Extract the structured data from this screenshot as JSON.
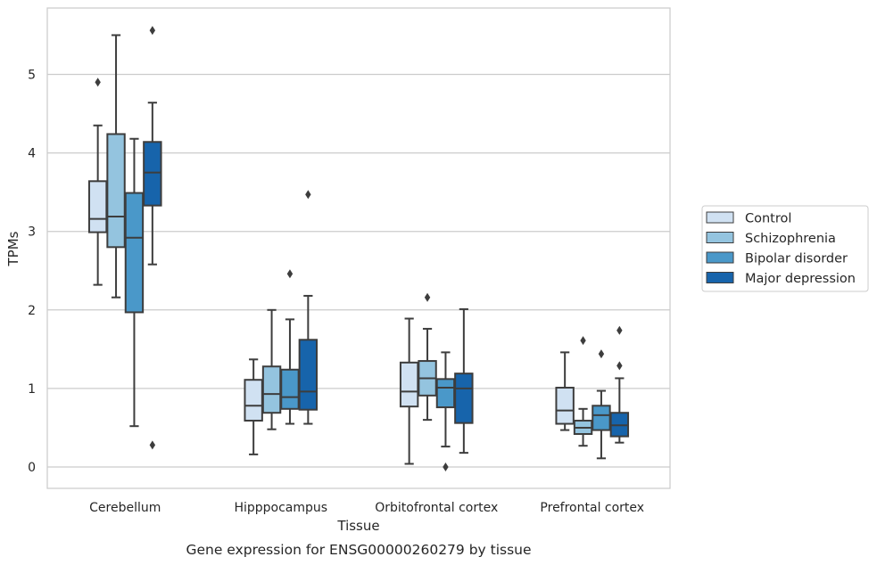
{
  "chart_data": {
    "type": "box",
    "title": "",
    "caption": "Gene expression for ENSG00000260279 by tissue",
    "xlabel": "Tissue",
    "ylabel": "TPMs",
    "ylim": [
      -0.27,
      5.85
    ],
    "yticks": [
      0,
      1,
      2,
      3,
      4,
      5
    ],
    "grid": "horizontal",
    "legend_placement": "right",
    "categories": [
      "Cerebellum",
      "Hipppocampus",
      "Orbitofrontal cortex",
      "Prefrontal cortex"
    ],
    "series": [
      {
        "name": "Control",
        "color": "#d0e1f2",
        "boxes": [
          {
            "whisker_low": 2.32,
            "q1": 2.99,
            "median": 3.16,
            "q3": 3.64,
            "whisker_high": 4.35,
            "outliers": [
              4.9
            ]
          },
          {
            "whisker_low": 0.16,
            "q1": 0.59,
            "median": 0.78,
            "q3": 1.11,
            "whisker_high": 1.37,
            "outliers": []
          },
          {
            "whisker_low": 0.04,
            "q1": 0.77,
            "median": 0.96,
            "q3": 1.33,
            "whisker_high": 1.89,
            "outliers": []
          },
          {
            "whisker_low": 0.47,
            "q1": 0.55,
            "median": 0.72,
            "q3": 1.01,
            "whisker_high": 1.46,
            "outliers": []
          }
        ]
      },
      {
        "name": "Schizophrenia",
        "color": "#94c4df",
        "boxes": [
          {
            "whisker_low": 2.16,
            "q1": 2.8,
            "median": 3.19,
            "q3": 4.24,
            "whisker_high": 5.5,
            "outliers": []
          },
          {
            "whisker_low": 0.48,
            "q1": 0.69,
            "median": 0.93,
            "q3": 1.28,
            "whisker_high": 2.0,
            "outliers": []
          },
          {
            "whisker_low": 0.6,
            "q1": 0.91,
            "median": 1.13,
            "q3": 1.35,
            "whisker_high": 1.76,
            "outliers": [
              2.16
            ]
          },
          {
            "whisker_low": 0.27,
            "q1": 0.42,
            "median": 0.5,
            "q3": 0.59,
            "whisker_high": 0.74,
            "outliers": [
              1.61
            ]
          }
        ]
      },
      {
        "name": "Bipolar disorder",
        "color": "#4a98c9",
        "boxes": [
          {
            "whisker_low": 0.52,
            "q1": 1.97,
            "median": 2.92,
            "q3": 3.49,
            "whisker_high": 4.18,
            "outliers": []
          },
          {
            "whisker_low": 0.55,
            "q1": 0.74,
            "median": 0.89,
            "q3": 1.24,
            "whisker_high": 1.88,
            "outliers": [
              2.46
            ]
          },
          {
            "whisker_low": 0.26,
            "q1": 0.76,
            "median": 1.01,
            "q3": 1.12,
            "whisker_high": 1.46,
            "outliers": [
              0.0
            ]
          },
          {
            "whisker_low": 0.11,
            "q1": 0.47,
            "median": 0.66,
            "q3": 0.78,
            "whisker_high": 0.97,
            "outliers": [
              1.44
            ]
          }
        ]
      },
      {
        "name": "Major depression",
        "color": "#1764ab",
        "boxes": [
          {
            "whisker_low": 2.58,
            "q1": 3.33,
            "median": 3.75,
            "q3": 4.14,
            "whisker_high": 4.64,
            "outliers": [
              5.56,
              0.28
            ]
          },
          {
            "whisker_low": 0.55,
            "q1": 0.73,
            "median": 0.96,
            "q3": 1.62,
            "whisker_high": 2.18,
            "outliers": [
              3.47
            ]
          },
          {
            "whisker_low": 0.18,
            "q1": 0.56,
            "median": 1.0,
            "q3": 1.19,
            "whisker_high": 2.01,
            "outliers": []
          },
          {
            "whisker_low": 0.31,
            "q1": 0.39,
            "median": 0.53,
            "q3": 0.69,
            "whisker_high": 1.13,
            "outliers": [
              1.29,
              1.74
            ]
          }
        ]
      }
    ]
  }
}
